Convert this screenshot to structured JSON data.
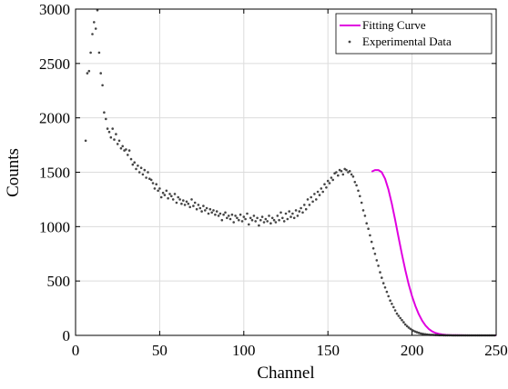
{
  "chart_data": {
    "type": "scatter",
    "xlabel": "Channel",
    "ylabel": "Counts",
    "xlim": [
      0,
      250
    ],
    "ylim": [
      0,
      3000
    ],
    "x_ticks": [
      0,
      50,
      100,
      150,
      200,
      250
    ],
    "y_ticks": [
      0,
      500,
      1000,
      1500,
      2000,
      2500,
      3000
    ],
    "grid": true,
    "legend_position": "top-right",
    "series": [
      {
        "name": "Fitting Curve",
        "kind": "line",
        "color": "#e000e0",
        "x": [
          176,
          178,
          180,
          182,
          184,
          186,
          188,
          190,
          192,
          194,
          196,
          198,
          200,
          202,
          204,
          206,
          208,
          210,
          212,
          214,
          216,
          218,
          220,
          222,
          226,
          230,
          235,
          240,
          245,
          250
        ],
        "y": [
          1505,
          1520,
          1520,
          1500,
          1440,
          1340,
          1210,
          1060,
          900,
          745,
          600,
          470,
          360,
          270,
          195,
          135,
          90,
          58,
          36,
          22,
          13,
          8,
          5,
          3,
          2,
          1,
          0,
          0,
          0,
          0
        ]
      },
      {
        "name": "Experimental Data",
        "kind": "points",
        "color": "#444444",
        "x": [
          6,
          7,
          8,
          9,
          10,
          11,
          12,
          13,
          14,
          15,
          16,
          17,
          18,
          19,
          20,
          21,
          22,
          23,
          24,
          25,
          26,
          27,
          28,
          29,
          30,
          31,
          32,
          33,
          34,
          35,
          36,
          37,
          38,
          39,
          40,
          41,
          42,
          43,
          44,
          45,
          46,
          47,
          48,
          49,
          50,
          51,
          52,
          53,
          54,
          55,
          56,
          57,
          58,
          59,
          60,
          61,
          62,
          63,
          64,
          65,
          66,
          67,
          68,
          69,
          70,
          71,
          72,
          73,
          74,
          75,
          76,
          77,
          78,
          79,
          80,
          81,
          82,
          83,
          84,
          85,
          86,
          87,
          88,
          89,
          90,
          91,
          92,
          93,
          94,
          95,
          96,
          97,
          98,
          99,
          100,
          101,
          102,
          103,
          104,
          105,
          106,
          107,
          108,
          109,
          110,
          111,
          112,
          113,
          114,
          115,
          116,
          117,
          118,
          119,
          120,
          121,
          122,
          123,
          124,
          125,
          126,
          127,
          128,
          129,
          130,
          131,
          132,
          133,
          134,
          135,
          136,
          137,
          138,
          139,
          140,
          141,
          142,
          143,
          144,
          145,
          146,
          147,
          148,
          149,
          150,
          151,
          152,
          153,
          154,
          155,
          156,
          157,
          158,
          159,
          160,
          161,
          162,
          163,
          164,
          165,
          166,
          167,
          168,
          169,
          170,
          171,
          172,
          173,
          174,
          175,
          176,
          177,
          178,
          179,
          180,
          181,
          182,
          183,
          184,
          185,
          186,
          187,
          188,
          189,
          190,
          191,
          192,
          193,
          194,
          195,
          196,
          197,
          198,
          199,
          200,
          201,
          202,
          203,
          204,
          205,
          206,
          207,
          208,
          209,
          210,
          211,
          212,
          213,
          214,
          215,
          216,
          217,
          218,
          219,
          220,
          221,
          222,
          223,
          224,
          225,
          226,
          227,
          228,
          229,
          230,
          231,
          232,
          233,
          234,
          235,
          236,
          237,
          238,
          239,
          240,
          241,
          242,
          243,
          244,
          245,
          246,
          247,
          248,
          249
        ],
        "y": [
          1790,
          2410,
          2430,
          2600,
          2770,
          2880,
          2820,
          2990,
          2600,
          2410,
          2300,
          2050,
          1990,
          1900,
          1870,
          1820,
          1900,
          1800,
          1850,
          1760,
          1790,
          1720,
          1740,
          1700,
          1710,
          1660,
          1700,
          1620,
          1570,
          1590,
          1530,
          1560,
          1500,
          1540,
          1480,
          1520,
          1450,
          1500,
          1440,
          1430,
          1400,
          1350,
          1390,
          1330,
          1350,
          1270,
          1310,
          1290,
          1330,
          1260,
          1300,
          1280,
          1250,
          1300,
          1220,
          1270,
          1250,
          1210,
          1240,
          1200,
          1230,
          1210,
          1180,
          1250,
          1190,
          1220,
          1160,
          1200,
          1170,
          1140,
          1190,
          1150,
          1170,
          1120,
          1160,
          1130,
          1150,
          1110,
          1140,
          1100,
          1120,
          1060,
          1110,
          1130,
          1080,
          1100,
          1070,
          1110,
          1040,
          1100,
          1080,
          1060,
          1110,
          1050,
          1090,
          1070,
          1120,
          1020,
          1080,
          1060,
          1100,
          1050,
          1080,
          1010,
          1060,
          1090,
          1040,
          1070,
          1050,
          1100,
          1030,
          1080,
          1060,
          1040,
          1100,
          1060,
          1130,
          1080,
          1050,
          1120,
          1070,
          1140,
          1090,
          1120,
          1080,
          1150,
          1100,
          1140,
          1170,
          1130,
          1200,
          1160,
          1250,
          1200,
          1270,
          1230,
          1300,
          1250,
          1320,
          1290,
          1350,
          1320,
          1390,
          1360,
          1420,
          1400,
          1450,
          1430,
          1490,
          1500,
          1470,
          1520,
          1510,
          1480,
          1530,
          1520,
          1500,
          1510,
          1480,
          1460,
          1410,
          1380,
          1330,
          1280,
          1220,
          1150,
          1100,
          1030,
          980,
          920,
          860,
          800,
          750,
          690,
          640,
          580,
          530,
          480,
          440,
          400,
          360,
          320,
          290,
          260,
          230,
          200,
          180,
          160,
          140,
          120,
          100,
          85,
          72,
          60,
          50,
          42,
          34,
          28,
          23,
          18,
          15,
          12,
          10,
          8,
          6,
          5,
          5,
          4,
          3,
          3,
          2,
          2,
          2,
          1,
          1,
          1,
          1,
          1,
          0,
          0,
          0,
          0,
          0,
          0,
          0,
          0,
          0,
          0,
          0,
          0,
          0,
          0,
          0,
          0,
          0,
          0,
          0,
          0,
          0,
          0,
          0,
          0,
          0,
          0
        ]
      }
    ]
  }
}
